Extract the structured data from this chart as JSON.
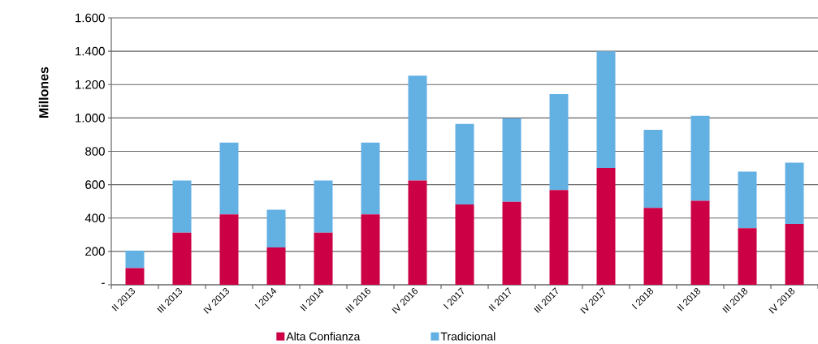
{
  "chart_data": {
    "type": "bar",
    "stacked": true,
    "ylabel": "Millones",
    "categories": [
      "II 2013",
      "III 2013",
      "IV 2013",
      "I 2014",
      "II 2014",
      "III 2016",
      "IV 2016",
      "I 2017",
      "II 2017",
      "III 2017",
      "IV 2017",
      "I 2018",
      "II 2018",
      "III 2018",
      "IV 2018"
    ],
    "series": [
      {
        "name": "Alta Confianza",
        "color": "#cc0044",
        "values": [
          100,
          312,
          422,
          224,
          312,
          422,
          625,
          481,
          497,
          568,
          700,
          461,
          503,
          339,
          365
        ]
      },
      {
        "name": "Tradicional",
        "color": "#63b0e3",
        "values": [
          105,
          313,
          430,
          226,
          313,
          430,
          628,
          483,
          501,
          575,
          699,
          468,
          510,
          340,
          367
        ]
      }
    ],
    "ylim": [
      0,
      1600
    ],
    "yticks": [
      {
        "value": 0,
        "label": "-"
      },
      {
        "value": 200,
        "label": "200"
      },
      {
        "value": 400,
        "label": "400"
      },
      {
        "value": 600,
        "label": "600"
      },
      {
        "value": 800,
        "label": "800"
      },
      {
        "value": 1000,
        "label": "1.000"
      },
      {
        "value": 1200,
        "label": "1.200"
      },
      {
        "value": 1400,
        "label": "1.400"
      },
      {
        "value": 1600,
        "label": "1.600"
      }
    ],
    "grid": "y",
    "legend": "bottom"
  }
}
